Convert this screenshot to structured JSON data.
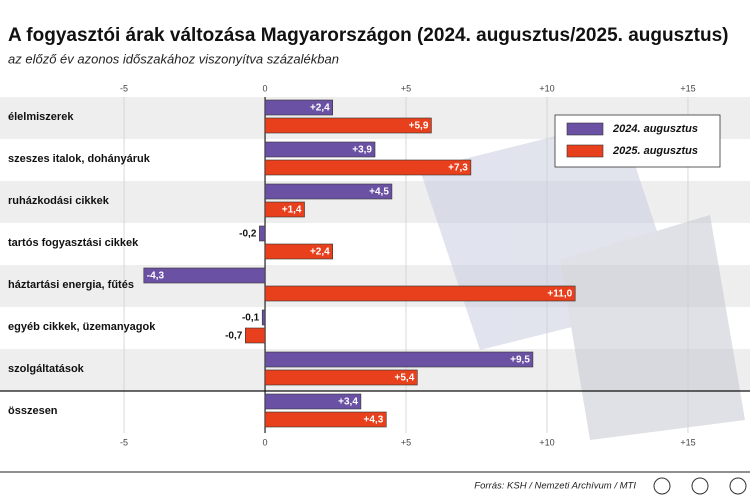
{
  "chart_data": {
    "type": "hbar",
    "title": "A fogyasztói árak változása Magyarországon (2024. augusztus/2025. augusztus)",
    "subtitle": "az előző év azonos időszakához viszonyítva százalékban",
    "categories": [
      "élelmiszerek",
      "szeszes italok, dohányáruk",
      "ruházkodási cikkek",
      "tartós fogyasztási cikkek",
      "háztartási energia, fűtés",
      "egyéb cikkek, üzemanyagok",
      "szolgáltatások",
      "összesen"
    ],
    "series": [
      {
        "name": "2024. augusztus",
        "color": "#6a51a3",
        "values": [
          2.4,
          3.9,
          4.5,
          -0.2,
          -4.3,
          -0.1,
          9.5,
          3.4
        ],
        "value_labels": [
          "+2,4",
          "+3,9",
          "+4,5",
          "-0,2",
          "-4,3",
          "-0,1",
          "+9,5",
          "+3,4"
        ]
      },
      {
        "name": "2025. augusztus",
        "color": "#e8401c",
        "values": [
          5.9,
          7.3,
          1.4,
          2.4,
          11.0,
          -0.7,
          5.4,
          4.3
        ],
        "value_labels": [
          "+5,9",
          "+7,3",
          "+1,4",
          "+2,4",
          "+11,0",
          "-0,7",
          "+5,4",
          "+4,3"
        ]
      }
    ],
    "xlim": [
      -9.4,
      17.2
    ],
    "xticks": [
      -5,
      0,
      {
        "value": 5,
        "label": "+5"
      },
      {
        "value": 10,
        "label": "+10"
      },
      {
        "value": 15,
        "label": "+15"
      }
    ],
    "legend": "upper right",
    "grid": true,
    "source": "Forrás: KSH / Nemzeti Archívum / MTI"
  }
}
